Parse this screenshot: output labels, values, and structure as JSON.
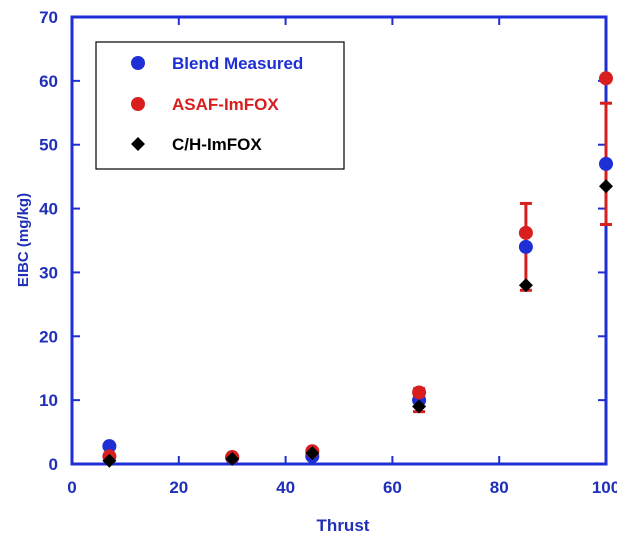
{
  "chart_data": {
    "type": "scatter",
    "xlabel": "Thrust",
    "ylabel": "EIBC (mg/kg)",
    "xlim": [
      0,
      100
    ],
    "ylim": [
      0,
      70
    ],
    "x_ticks": [
      0,
      20,
      40,
      60,
      80,
      100
    ],
    "y_ticks": [
      0,
      10,
      20,
      30,
      40,
      50,
      60,
      70
    ],
    "grid": false,
    "legend_position": "top-left",
    "series": [
      {
        "name": "Blend Measured",
        "marker": "circle",
        "color": "#1f2fd6",
        "points": [
          {
            "x": 7,
            "y": 2.8
          },
          {
            "x": 30,
            "y": 1.0
          },
          {
            "x": 45,
            "y": 1.2
          },
          {
            "x": 65,
            "y": 10.0
          },
          {
            "x": 85,
            "y": 34.0
          },
          {
            "x": 100,
            "y": 47.0
          }
        ]
      },
      {
        "name": "ASAF-ImFOX",
        "marker": "circle",
        "color": "#d81e1e",
        "points": [
          {
            "x": 7,
            "y": 1.2
          },
          {
            "x": 30,
            "y": 1.1
          },
          {
            "x": 45,
            "y": 2.0
          },
          {
            "x": 65,
            "y": 11.2
          },
          {
            "x": 85,
            "y": 36.2
          },
          {
            "x": 100,
            "y": 60.4
          }
        ]
      },
      {
        "name": "C/H-ImFOX",
        "marker": "diamond",
        "color": "#000000",
        "points": [
          {
            "x": 7,
            "y": 0.5
          },
          {
            "x": 30,
            "y": 0.8
          },
          {
            "x": 45,
            "y": 1.7
          },
          {
            "x": 65,
            "y": 9.0
          },
          {
            "x": 85,
            "y": 28.0
          },
          {
            "x": 100,
            "y": 43.5
          }
        ]
      }
    ],
    "error_bars": [
      {
        "x": 65,
        "low": 8.2,
        "high": 11.8,
        "color": "#d81e1e"
      },
      {
        "x": 85,
        "low": 27.2,
        "high": 40.8,
        "color": "#d81e1e"
      },
      {
        "x": 100,
        "low": 37.5,
        "high": 56.5,
        "color": "#d81e1e"
      }
    ]
  }
}
